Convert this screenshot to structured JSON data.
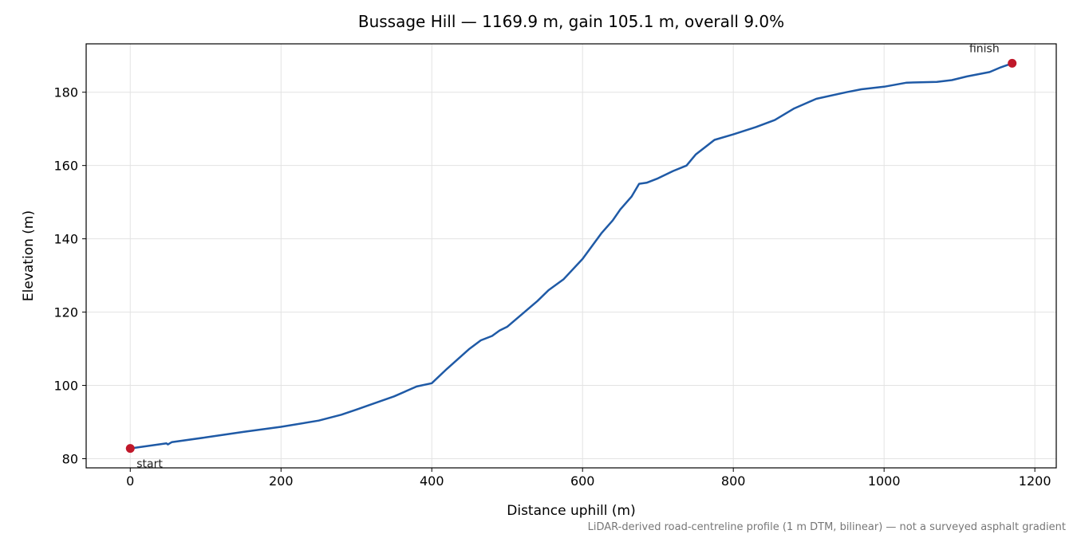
{
  "chart_data": {
    "type": "line",
    "title": "Bussage Hill — 1169.9 m, gain 105.1 m, overall 9.0%",
    "x_label": "Distance uphill (m)",
    "y_label": "Elevation (m)",
    "note": "LiDAR-derived road-centreline profile (1 m DTM, bilinear) — not a surveyed asphalt gradient",
    "annotations": [
      "start",
      "finish"
    ],
    "marker_color": "#c0182a",
    "grid": true,
    "xlim": [
      -58.5,
      1228.4
    ],
    "ylim": [
      77.5,
      193.2
    ],
    "xticks": [
      0,
      200,
      400,
      600,
      800,
      1000,
      1200
    ],
    "yticks": [
      80,
      100,
      120,
      140,
      160,
      180
    ],
    "x": [
      0,
      48,
      50,
      55,
      100,
      150,
      200,
      250,
      280,
      300,
      350,
      380,
      400,
      420,
      450,
      465,
      480,
      490,
      500,
      520,
      540,
      555,
      575,
      600,
      625,
      640,
      650,
      665,
      675,
      685,
      700,
      720,
      738,
      742,
      750,
      775,
      800,
      830,
      855,
      880,
      910,
      950,
      970,
      1000,
      1030,
      1070,
      1090,
      1110,
      1140,
      1155,
      1169.9
    ],
    "series": [
      {
        "color": "#1f5aa6",
        "values": [
          82.8,
          84.2,
          83.9,
          84.5,
          85.8,
          87.3,
          88.7,
          90.4,
          92.0,
          93.4,
          97.0,
          99.7,
          100.6,
          104.5,
          110.0,
          112.3,
          113.5,
          115.0,
          116.0,
          119.5,
          123.0,
          126.0,
          129.0,
          134.5,
          141.5,
          145.0,
          148.0,
          151.5,
          155.0,
          155.3,
          156.5,
          158.5,
          160.0,
          161.0,
          163.0,
          167.0,
          168.5,
          170.5,
          172.4,
          175.5,
          178.2,
          180.0,
          180.8,
          181.5,
          182.6,
          182.8,
          183.3,
          184.3,
          185.5,
          186.8,
          187.9
        ]
      }
    ]
  }
}
